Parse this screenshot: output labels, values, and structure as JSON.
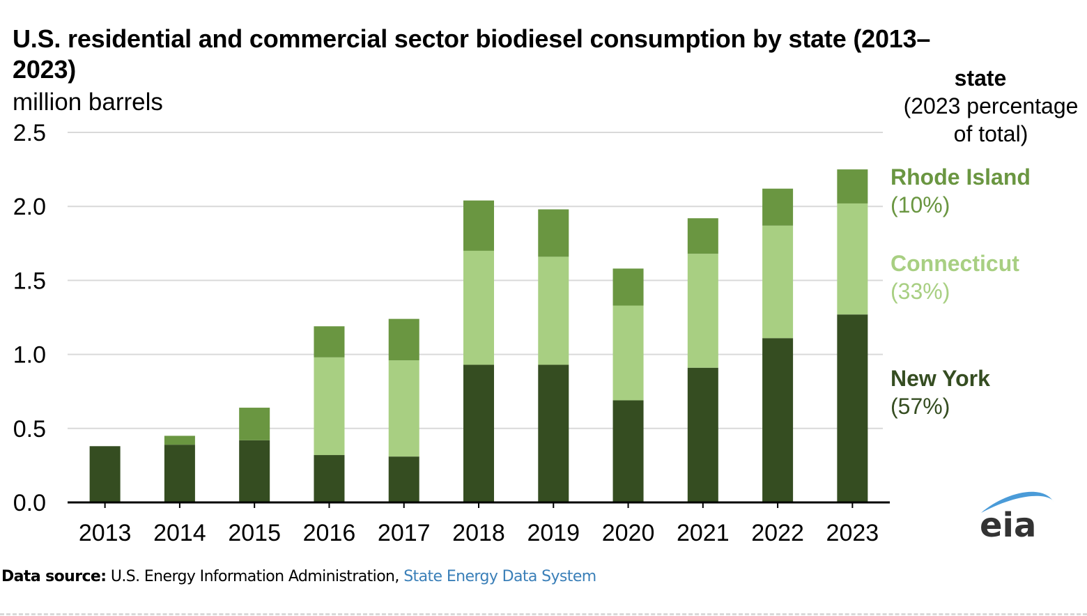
{
  "title": "U.S. residential and commercial sector biodiesel consumption by state (2013–2023)",
  "units": "million barrels",
  "legend": {
    "header_bold": "state",
    "header_sub": "(2023 percentage of total)",
    "items": [
      {
        "name": "Rhode Island",
        "pct": "(10%)",
        "color": "#6a9641"
      },
      {
        "name": "Connecticut",
        "pct": "(33%)",
        "color": "#a8cf82"
      },
      {
        "name": "New York",
        "pct": "(57%)",
        "color": "#354d21"
      }
    ]
  },
  "source": {
    "label": "Data source:",
    "text": " U.S. Energy Information Administration, ",
    "link": "State Energy Data System"
  },
  "logo": {
    "text": "eia",
    "arc_color": "#4a9bd8",
    "text_color": "#333333"
  },
  "chart_data": {
    "type": "bar",
    "stacked": true,
    "title": "U.S. residential and commercial sector biodiesel consumption by state (2013–2023)",
    "xlabel": "",
    "ylabel": "million barrels",
    "ylim": [
      0,
      2.5
    ],
    "yticks": [
      "0.0",
      "0.5",
      "1.0",
      "1.5",
      "2.0",
      "2.5"
    ],
    "grid": true,
    "legend_position": "right",
    "categories": [
      "2013",
      "2014",
      "2015",
      "2016",
      "2017",
      "2018",
      "2019",
      "2020",
      "2021",
      "2022",
      "2023"
    ],
    "series": [
      {
        "name": "New York",
        "color": "#354d21",
        "values": [
          0.38,
          0.39,
          0.42,
          0.32,
          0.31,
          0.93,
          0.93,
          0.69,
          0.91,
          1.11,
          1.27
        ]
      },
      {
        "name": "Connecticut",
        "color": "#a8cf82",
        "values": [
          0.0,
          0.0,
          0.0,
          0.66,
          0.65,
          0.77,
          0.73,
          0.64,
          0.77,
          0.76,
          0.75
        ]
      },
      {
        "name": "Rhode Island",
        "color": "#6a9641",
        "values": [
          0.0,
          0.06,
          0.22,
          0.21,
          0.28,
          0.34,
          0.32,
          0.25,
          0.24,
          0.25,
          0.23
        ]
      }
    ]
  }
}
